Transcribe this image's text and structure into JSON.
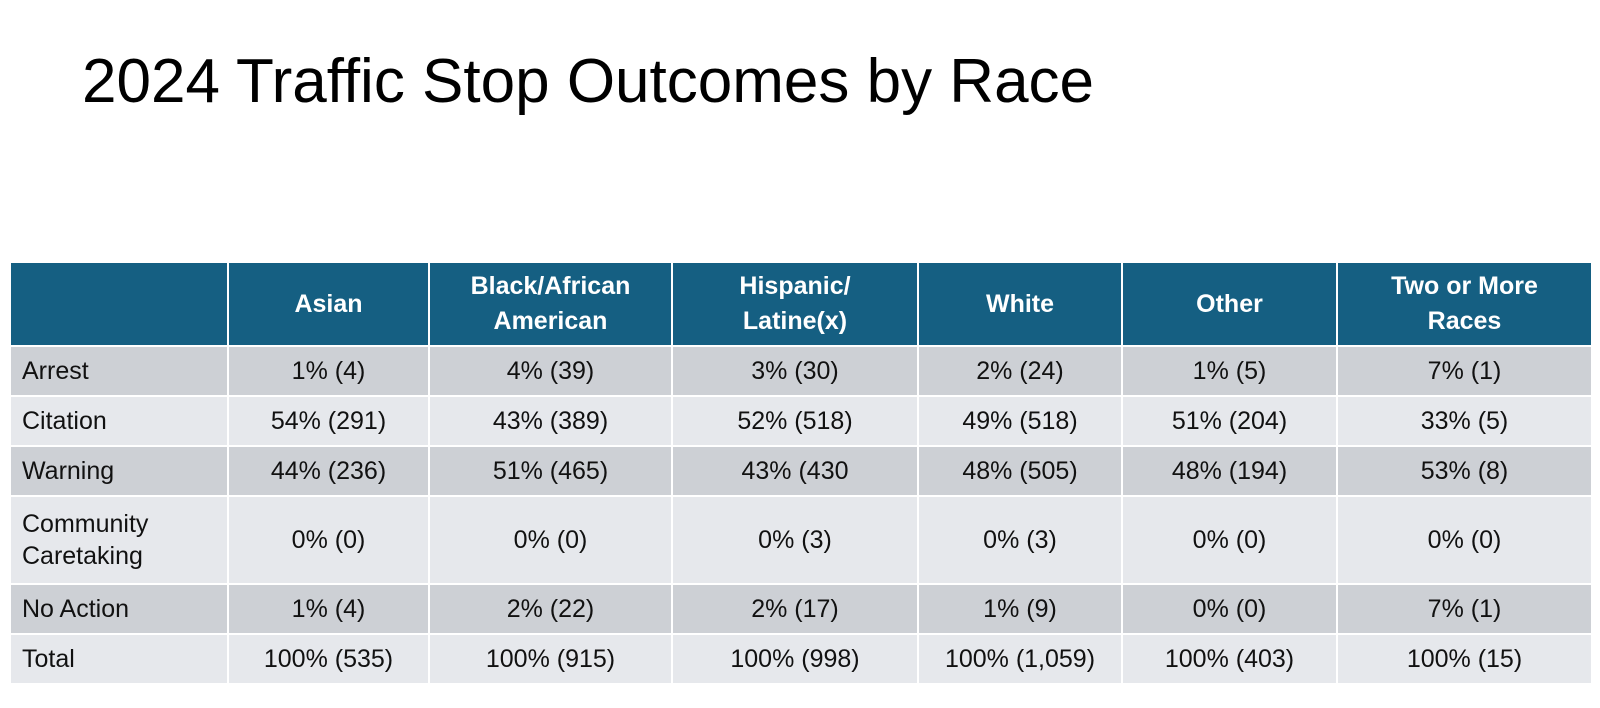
{
  "title": "2024 Traffic Stop Outcomes by Race",
  "table": {
    "corner": "",
    "columns": [
      {
        "line1": "Asian",
        "line2": ""
      },
      {
        "line1": "Black/African",
        "line2": "American"
      },
      {
        "line1": "Hispanic/",
        "line2": "Latine(x)"
      },
      {
        "line1": "White",
        "line2": ""
      },
      {
        "line1": "Other",
        "line2": ""
      },
      {
        "line1": "Two or More",
        "line2": "Races"
      }
    ],
    "rows": [
      {
        "label1": "Arrest",
        "label2": "",
        "cells": [
          "1% (4)",
          "4% (39)",
          "3% (30)",
          "2% (24)",
          "1% (5)",
          "7% (1)"
        ]
      },
      {
        "label1": "Citation",
        "label2": "",
        "cells": [
          "54% (291)",
          "43% (389)",
          "52% (518)",
          "49% (518)",
          "51% (204)",
          "33% (5)"
        ]
      },
      {
        "label1": "Warning",
        "label2": "",
        "cells": [
          "44% (236)",
          "51% (465)",
          "43% (430",
          "48% (505)",
          "48% (194)",
          "53% (8)"
        ]
      },
      {
        "label1": "Community",
        "label2": "Caretaking",
        "cells": [
          "0% (0)",
          "0% (0)",
          "0% (3)",
          "0% (3)",
          "0% (0)",
          "0% (0)"
        ]
      },
      {
        "label1": "No Action",
        "label2": "",
        "cells": [
          "1% (4)",
          "2% (22)",
          "2% (17)",
          "1% (9)",
          "0% (0)",
          "7% (1)"
        ]
      },
      {
        "label1": "Total",
        "label2": "",
        "cells": [
          "100% (535)",
          "100% (915)",
          "100% (998)",
          "100% (1,059)",
          "100% (403)",
          "100% (15)"
        ]
      }
    ]
  },
  "colors": {
    "header_bg": "#155f82",
    "header_text": "#ffffff",
    "row_dark": "#cdd0d5",
    "row_light": "#e6e8ec"
  }
}
